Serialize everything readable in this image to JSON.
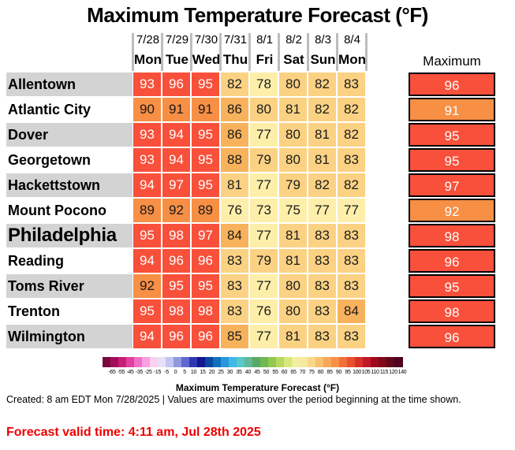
{
  "chart_data": {
    "type": "table",
    "title": "Maximum Temperature Forecast (°F)",
    "columns": [
      {
        "date": "7/28",
        "day": "Mon"
      },
      {
        "date": "7/29",
        "day": "Tue"
      },
      {
        "date": "7/30",
        "day": "Wed"
      },
      {
        "date": "7/31",
        "day": "Thu"
      },
      {
        "date": "8/1",
        "day": "Fri"
      },
      {
        "date": "8/2",
        "day": "Sat"
      },
      {
        "date": "8/3",
        "day": "Sun"
      },
      {
        "date": "8/4",
        "day": "Mon"
      }
    ],
    "max_header": "Maximum",
    "rows": [
      {
        "city": "Allentown",
        "values": [
          93,
          96,
          95,
          82,
          78,
          80,
          82,
          83
        ],
        "max": 96
      },
      {
        "city": "Atlantic City",
        "values": [
          90,
          91,
          91,
          86,
          80,
          81,
          82,
          82
        ],
        "max": 91
      },
      {
        "city": "Dover",
        "values": [
          93,
          94,
          95,
          86,
          77,
          80,
          81,
          82
        ],
        "max": 95
      },
      {
        "city": "Georgetown",
        "values": [
          93,
          94,
          95,
          88,
          79,
          80,
          81,
          83
        ],
        "max": 95
      },
      {
        "city": "Hackettstown",
        "values": [
          94,
          97,
          95,
          81,
          77,
          79,
          82,
          82
        ],
        "max": 97
      },
      {
        "city": "Mount Pocono",
        "values": [
          89,
          92,
          89,
          76,
          73,
          75,
          77,
          77
        ],
        "max": 92
      },
      {
        "city": "Philadelphia",
        "values": [
          95,
          98,
          97,
          84,
          77,
          81,
          83,
          83
        ],
        "max": 98,
        "emphasis": true
      },
      {
        "city": "Reading",
        "values": [
          94,
          96,
          96,
          83,
          79,
          81,
          83,
          83
        ],
        "max": 96
      },
      {
        "city": "Toms River",
        "values": [
          92,
          95,
          95,
          83,
          77,
          80,
          83,
          83
        ],
        "max": 95
      },
      {
        "city": "Trenton",
        "values": [
          95,
          98,
          98,
          83,
          76,
          80,
          83,
          84
        ],
        "max": 98
      },
      {
        "city": "Wilmington",
        "values": [
          94,
          96,
          96,
          85,
          77,
          81,
          83,
          83
        ],
        "max": 96
      }
    ],
    "colorbar": {
      "title": "Maximum Temperature Forecast (°F)",
      "ticks": [
        "-65",
        "-55",
        "-45",
        "-35",
        "-25",
        "-15",
        "-5",
        "0",
        "5",
        "10",
        "15",
        "20",
        "25",
        "30",
        "35",
        "40",
        "45",
        "50",
        "55",
        "60",
        "65",
        "70",
        "75",
        "80",
        "85",
        "90",
        "95",
        "100",
        "105",
        "110",
        "115",
        "120",
        "140"
      ],
      "colors": [
        "#7a0840",
        "#a0105a",
        "#c81e78",
        "#e040a0",
        "#f070c8",
        "#f8a0e0",
        "#fcd0f0",
        "#e8e0f8",
        "#c0c8f0",
        "#9098e0",
        "#6068d0",
        "#3038b0",
        "#101890",
        "#0848a0",
        "#1070c0",
        "#2898d8",
        "#40b8e8",
        "#58c8c8",
        "#60b898",
        "#58a868",
        "#70b850",
        "#90c850",
        "#b8d860",
        "#d8e878",
        "#f0f0a0",
        "#f8e8a0",
        "#f8d888",
        "#f8c070",
        "#f8a858",
        "#f89048",
        "#f07038",
        "#e85030",
        "#d83028",
        "#c01828",
        "#a00820",
        "#800818",
        "#600818",
        "#500020"
      ]
    },
    "color_scale": {
      "hot": "#f8503a",
      "very_warm": "#f78f45",
      "warm": "#f8b25b",
      "mild_warm": "#fbd283",
      "mild": "#fdefaa"
    }
  },
  "footer": {
    "created": "Created: 8 am EDT Mon 7/28/2025  |  Values are maximums over the period beginning at the time shown.",
    "valid": "Forecast valid time: 4:11 am, Jul 28th 2025"
  }
}
